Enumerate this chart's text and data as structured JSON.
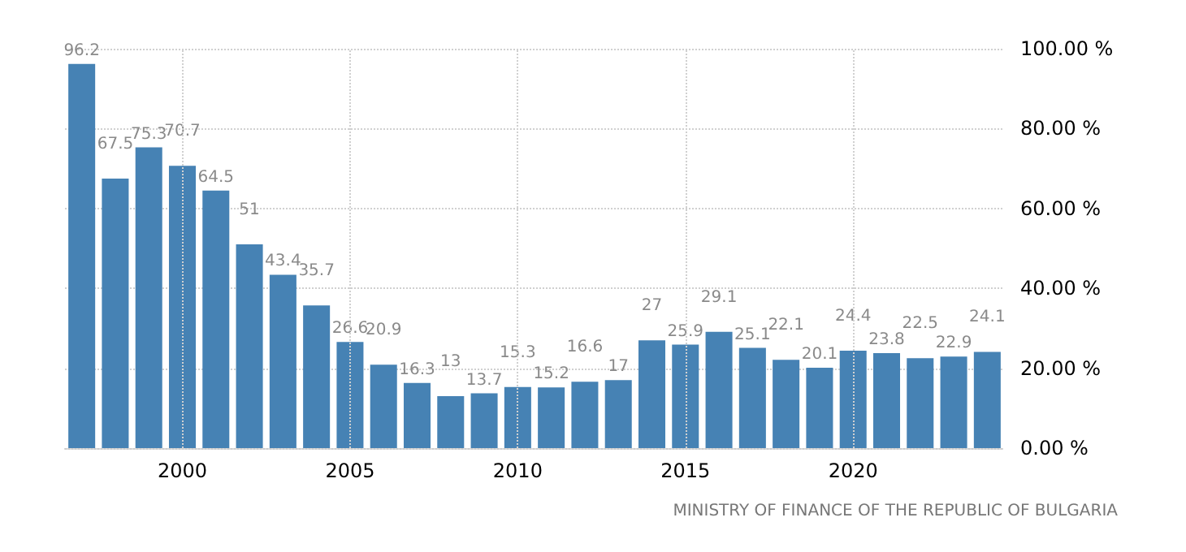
{
  "chart_data": {
    "type": "bar",
    "categories": [
      null,
      null,
      null,
      "2000",
      null,
      null,
      null,
      null,
      "2005",
      null,
      null,
      null,
      null,
      "2010",
      null,
      null,
      null,
      null,
      "2015",
      null,
      null,
      null,
      null,
      "2020",
      null,
      null,
      null,
      null
    ],
    "values": [
      96.2,
      67.5,
      75.3,
      70.7,
      64.5,
      51,
      43.4,
      35.7,
      26.6,
      20.9,
      16.3,
      13,
      13.7,
      15.3,
      15.2,
      16.6,
      17,
      27,
      25.9,
      29.1,
      25.1,
      22.1,
      20.1,
      24.4,
      23.8,
      22.5,
      22.9,
      24.1
    ],
    "color": "#4682b4",
    "data_labels": true,
    "ylim": [
      0,
      100
    ],
    "yticks": [
      {
        "value": 0,
        "label": "0.00 %"
      },
      {
        "value": 20,
        "label": "20.00 %"
      },
      {
        "value": 40,
        "label": "40.00 %"
      },
      {
        "value": 60,
        "label": "60.00 %"
      },
      {
        "value": 80,
        "label": "80.00 %"
      },
      {
        "value": 100,
        "label": "100.00 %"
      }
    ],
    "grid": true,
    "annotations": [
      "MINISTRY OF FINANCE OF THE REPUBLIC OF BULGARIA"
    ]
  }
}
